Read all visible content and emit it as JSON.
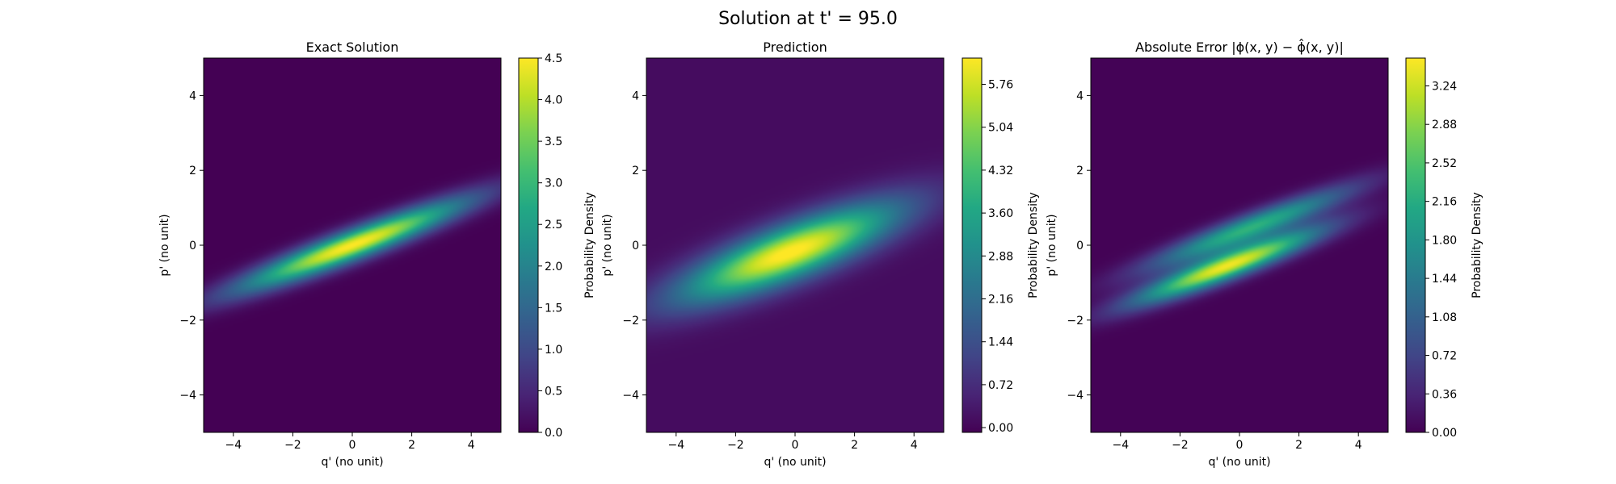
{
  "figure": {
    "suptitle": "Solution at t' = 95.0"
  },
  "chart_data": [
    {
      "type": "heatmap",
      "title": "Exact Solution",
      "xlabel": "q' (no unit)",
      "ylabel": "p' (no unit)",
      "xlim": [
        -5,
        5
      ],
      "ylim": [
        -5,
        5
      ],
      "xticks": [
        -4,
        -2,
        0,
        2,
        4
      ],
      "yticks": [
        -4,
        -2,
        0,
        2,
        4
      ],
      "xtick_labels": [
        "−4",
        "−2",
        "0",
        "2",
        "4"
      ],
      "ytick_labels": [
        "−4",
        "−2",
        "0",
        "2",
        "4"
      ],
      "colormap": "viridis",
      "colorbar": {
        "label": "Probability Density",
        "vmin": 0,
        "vmax": 4.5,
        "ticks": [
          0,
          0.5,
          1,
          1.5,
          2,
          2.5,
          3,
          3.5,
          4,
          4.5
        ],
        "tick_labels": [
          "0.0",
          "0.5",
          "1.0",
          "1.5",
          "2.0",
          "2.5",
          "3.0",
          "3.5",
          "4.0",
          "4.5"
        ]
      },
      "field": {
        "components": [
          {
            "amp": 4.5,
            "cx": 0,
            "cy": 0,
            "slope": 0.3,
            "s_along": 2.7,
            "s_perp": 0.28
          }
        ],
        "background": 0
      }
    },
    {
      "type": "heatmap",
      "title": "Prediction",
      "xlabel": "q' (no unit)",
      "ylabel": "p' (no unit)",
      "xlim": [
        -5,
        5
      ],
      "ylim": [
        -5,
        5
      ],
      "xticks": [
        -4,
        -2,
        0,
        2,
        4
      ],
      "yticks": [
        -4,
        -2,
        0,
        2,
        4
      ],
      "xtick_labels": [
        "−4",
        "−2",
        "0",
        "2",
        "4"
      ],
      "ytick_labels": [
        "−4",
        "−2",
        "0",
        "2",
        "4"
      ],
      "colormap": "viridis",
      "colorbar": {
        "label": "Probability Density",
        "vmin": -0.08,
        "vmax": 6.2,
        "ticks": [
          0,
          0.72,
          1.44,
          2.16,
          2.88,
          3.6,
          4.32,
          5.04,
          5.76
        ],
        "tick_labels": [
          "0.00",
          "0.72",
          "1.44",
          "2.16",
          "2.88",
          "3.60",
          "4.32",
          "5.04",
          "5.76"
        ]
      },
      "field": {
        "components": [
          {
            "amp": 6.2,
            "cx": -0.2,
            "cy": -0.2,
            "slope": 0.3,
            "s_along": 2.6,
            "s_perp": 0.5
          }
        ],
        "background": 0.12
      }
    },
    {
      "type": "heatmap",
      "title": "Absolute Error |ϕ(x, y) − ϕ̂(x, y)|",
      "xlabel": "q' (no unit)",
      "ylabel": "p' (no unit)",
      "xlim": [
        -5,
        5
      ],
      "ylim": [
        -5,
        5
      ],
      "xticks": [
        -4,
        -2,
        0,
        2,
        4
      ],
      "yticks": [
        -4,
        -2,
        0,
        2,
        4
      ],
      "xtick_labels": [
        "−4",
        "−2",
        "0",
        "2",
        "4"
      ],
      "ytick_labels": [
        "−4",
        "−2",
        "0",
        "2",
        "4"
      ],
      "colormap": "viridis",
      "colorbar": {
        "label": "Probability Density",
        "vmin": 0,
        "vmax": 3.5,
        "ticks": [
          0,
          0.36,
          0.72,
          1.08,
          1.44,
          1.8,
          2.16,
          2.52,
          2.88,
          3.24
        ],
        "tick_labels": [
          "0.00",
          "0.36",
          "0.72",
          "1.08",
          "1.44",
          "1.80",
          "2.16",
          "2.52",
          "2.88",
          "3.24"
        ]
      },
      "field": {
        "components": [
          {
            "amp": 3.4,
            "cx": -0.4,
            "cy": -0.55,
            "slope": 0.3,
            "s_along": 2.2,
            "s_perp": 0.25
          },
          {
            "amp": 2.2,
            "cx": 0.3,
            "cy": 0.45,
            "slope": 0.3,
            "s_along": 2.4,
            "s_perp": 0.25
          }
        ],
        "background": 0.02
      }
    }
  ]
}
